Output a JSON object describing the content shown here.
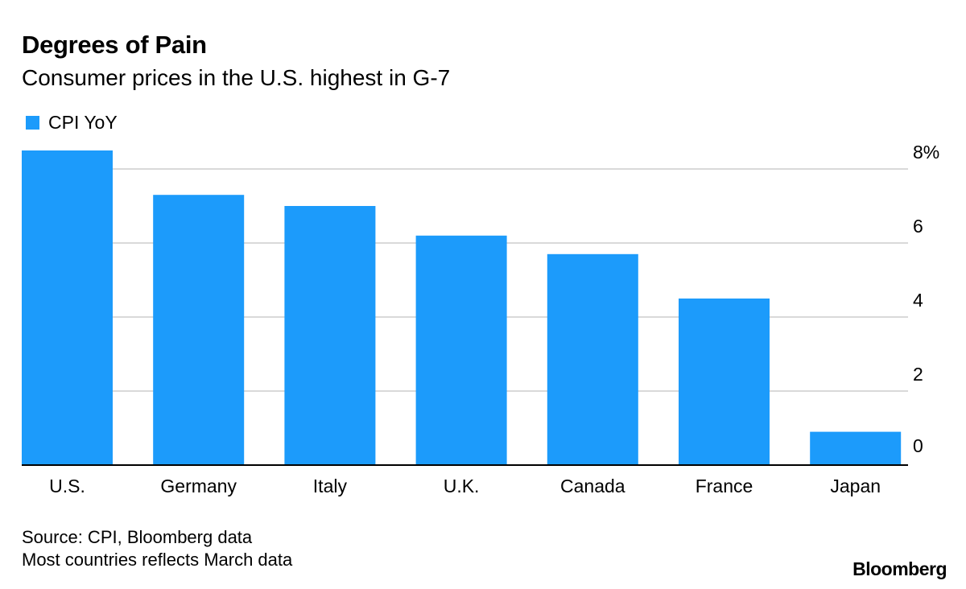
{
  "chart_data": {
    "type": "bar",
    "title": "Degrees of Pain",
    "subtitle": "Consumer prices in the U.S. highest in G-7",
    "categories": [
      "U.S.",
      "Germany",
      "Italy",
      "U.K.",
      "Canada",
      "France",
      "Japan"
    ],
    "series": [
      {
        "name": "CPI YoY",
        "values": [
          8.5,
          7.3,
          7.0,
          6.2,
          5.7,
          4.5,
          0.9
        ]
      }
    ],
    "ylim": [
      0,
      8
    ],
    "yticks": [
      {
        "value": 8,
        "label": "8%"
      },
      {
        "value": 6,
        "label": "6"
      },
      {
        "value": 4,
        "label": "4"
      },
      {
        "value": 2,
        "label": "2"
      },
      {
        "value": 0,
        "label": "0"
      }
    ],
    "xlabel": "",
    "ylabel": "",
    "grid": true,
    "legend_position": "top-left"
  },
  "colors": {
    "bar": "#1c9bfb",
    "grid": "#d9d9d9",
    "axis": "#000000"
  },
  "footer": {
    "source_line1": "Source: CPI, Bloomberg data",
    "source_line2": "Most countries reflects March data",
    "brand": "Bloomberg"
  }
}
